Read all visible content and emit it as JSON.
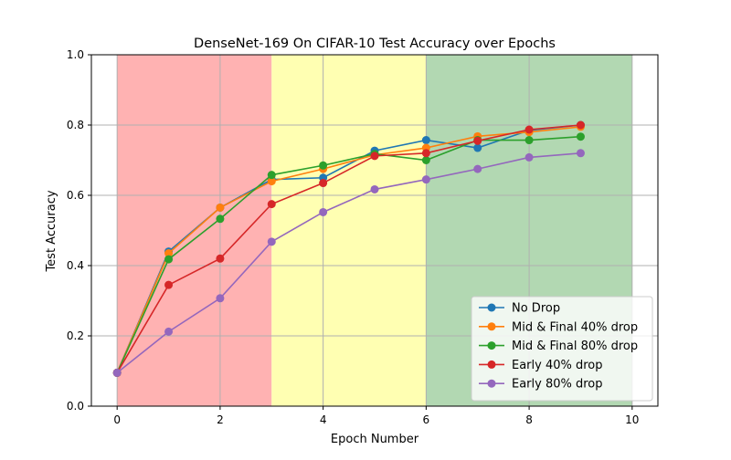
{
  "chart_data": {
    "type": "line",
    "title": "DenseNet-169 On CIFAR-10 Test Accuracy over Epochs",
    "xlabel": "Epoch Number",
    "ylabel": "Test Accuracy",
    "xlim": [
      -0.5,
      10.5
    ],
    "ylim": [
      0.0,
      1.0
    ],
    "xticks": [
      0,
      2,
      4,
      6,
      8,
      10
    ],
    "yticks": [
      0.0,
      0.2,
      0.4,
      0.6,
      0.8,
      1.0
    ],
    "xtick_labels": [
      "0",
      "2",
      "4",
      "6",
      "8",
      "10"
    ],
    "ytick_labels": [
      "0.0",
      "0.2",
      "0.4",
      "0.6",
      "0.8",
      "1.0"
    ],
    "grid": true,
    "legend_position": "bottom-right",
    "x": [
      0,
      1,
      2,
      3,
      4,
      5,
      6,
      7,
      8,
      9
    ],
    "bands": [
      {
        "x_start": 0,
        "x_end": 3,
        "color": "#ffb2b2"
      },
      {
        "x_start": 3,
        "x_end": 6,
        "color": "#ffffb2"
      },
      {
        "x_start": 6,
        "x_end": 10,
        "color": "#b2d8b2"
      }
    ],
    "series": [
      {
        "name": "No Drop",
        "color": "#1f77b4",
        "values": [
          0.095,
          0.44,
          0.565,
          0.645,
          0.65,
          0.727,
          0.757,
          0.735,
          0.785,
          0.8
        ]
      },
      {
        "name": "Mid & Final 40% drop",
        "color": "#ff7f0e",
        "values": [
          0.095,
          0.435,
          0.565,
          0.64,
          0.675,
          0.715,
          0.735,
          0.768,
          0.78,
          0.795
        ]
      },
      {
        "name": "Mid & Final 80% drop",
        "color": "#2ca02c",
        "values": [
          0.095,
          0.418,
          0.533,
          0.658,
          0.685,
          0.718,
          0.7,
          0.757,
          0.757,
          0.767
        ]
      },
      {
        "name": "Early 40% drop",
        "color": "#d62728",
        "values": [
          0.095,
          0.345,
          0.42,
          0.575,
          0.635,
          0.712,
          0.72,
          0.755,
          0.787,
          0.8
        ]
      },
      {
        "name": "Early 80% drop",
        "color": "#9467bd",
        "values": [
          0.095,
          0.212,
          0.307,
          0.468,
          0.552,
          0.617,
          0.645,
          0.675,
          0.708,
          0.72
        ]
      }
    ]
  }
}
